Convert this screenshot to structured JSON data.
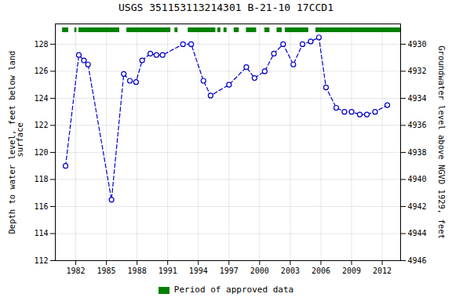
{
  "chart_data": {
    "type": "line",
    "title": "USGS 351153113214301 B-21-10 17CCD1",
    "y_label": "Depth to water level, feet below land\n surface",
    "y2_label": "Groundwater level above NGVD 1929, feet",
    "x": [
      1981.0,
      1982.3,
      1982.8,
      1983.2,
      1985.5,
      1986.7,
      1987.3,
      1987.9,
      1988.5,
      1989.3,
      1989.9,
      1990.5,
      1992.5,
      1993.3,
      1994.5,
      1995.2,
      1997.0,
      1998.7,
      1999.5,
      2000.5,
      2001.4,
      2002.3,
      2003.3,
      2004.2,
      2005.0,
      2005.8,
      2006.5,
      2007.5,
      2008.3,
      2009.0,
      2009.8,
      2010.5,
      2011.3,
      2012.5
    ],
    "values": [
      119.0,
      127.2,
      126.8,
      126.5,
      116.5,
      125.8,
      125.3,
      125.2,
      126.8,
      127.3,
      127.2,
      127.2,
      128.0,
      128.0,
      125.3,
      124.2,
      125.0,
      126.3,
      125.5,
      126.0,
      127.3,
      128.0,
      126.5,
      128.0,
      128.2,
      128.5,
      124.8,
      123.3,
      123.0,
      123.0,
      122.8,
      122.8,
      123.0,
      123.5
    ],
    "color": "#0000cc",
    "marker": "circle",
    "line_style": "dashed",
    "spans": {
      "name": "Period of approved data",
      "color": "#008000",
      "values": [
        [
          1980.7,
          1981.3
        ],
        [
          1981.9,
          1982.1
        ],
        [
          1982.3,
          1986.3
        ],
        [
          1987.0,
          1991.3
        ],
        [
          1991.7,
          1992.0
        ],
        [
          1993.0,
          1995.7
        ],
        [
          1995.9,
          1996.2
        ],
        [
          1996.5,
          1996.8
        ],
        [
          1997.5,
          1998.0
        ],
        [
          1998.7,
          1999.7
        ],
        [
          2000.5,
          2001.0
        ],
        [
          2001.7,
          2002.2
        ],
        [
          2002.5,
          2004.8
        ],
        [
          2005.5,
          2013.8
        ]
      ]
    },
    "xlim": [
      1980.0,
      2013.8
    ],
    "xticks": [
      1982,
      1985,
      1988,
      1991,
      1994,
      1997,
      2000,
      2003,
      2006,
      2009,
      2012
    ],
    "ylim": [
      112,
      129.5
    ],
    "yticks": [
      112,
      114,
      116,
      118,
      120,
      122,
      124,
      126,
      128
    ],
    "y2lim": [
      4946,
      4928.5
    ],
    "y2ticks": [
      4946,
      4944,
      4942,
      4940,
      4938,
      4936,
      4934,
      4932,
      4930
    ],
    "grid": true,
    "legend": "bottom"
  }
}
